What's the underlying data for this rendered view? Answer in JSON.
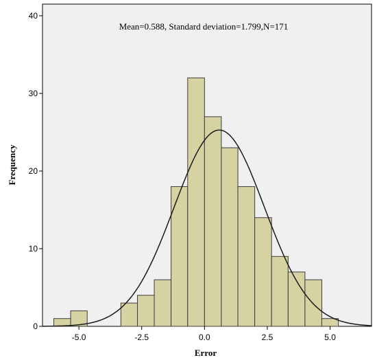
{
  "chart_data": {
    "type": "bar",
    "subtype": "histogram",
    "annotation": "Mean=0.588, Standard deviation=1.799,N=171",
    "xlabel": "Error",
    "ylabel": "Frequency",
    "xlim": [
      -6.45,
      6.65
    ],
    "ylim": [
      0,
      41.5
    ],
    "x_ticks": [
      {
        "value": -5.0,
        "label": "-5.0"
      },
      {
        "value": -2.5,
        "label": "-2.5"
      },
      {
        "value": 0.0,
        "label": "0.0"
      },
      {
        "value": 2.5,
        "label": "2.5"
      },
      {
        "value": 5.0,
        "label": "5.0"
      }
    ],
    "y_ticks": [
      {
        "value": 0,
        "label": "0"
      },
      {
        "value": 10,
        "label": "10"
      },
      {
        "value": 20,
        "label": "20"
      },
      {
        "value": 30,
        "label": "30"
      },
      {
        "value": 40,
        "label": "40"
      }
    ],
    "bins": [
      {
        "start": -6.0,
        "end": -5.33,
        "count": 1
      },
      {
        "start": -5.33,
        "end": -4.67,
        "count": 2
      },
      {
        "start": -4.67,
        "end": -4.0,
        "count": 0
      },
      {
        "start": -4.0,
        "end": -3.33,
        "count": 0
      },
      {
        "start": -3.33,
        "end": -2.67,
        "count": 3
      },
      {
        "start": -2.67,
        "end": -2.0,
        "count": 4
      },
      {
        "start": -2.0,
        "end": -1.33,
        "count": 6
      },
      {
        "start": -1.33,
        "end": -0.67,
        "count": 18
      },
      {
        "start": -0.67,
        "end": 0.0,
        "count": 32
      },
      {
        "start": 0.0,
        "end": 0.67,
        "count": 27
      },
      {
        "start": 0.67,
        "end": 1.33,
        "count": 23
      },
      {
        "start": 1.33,
        "end": 2.0,
        "count": 18
      },
      {
        "start": 2.0,
        "end": 2.67,
        "count": 14
      },
      {
        "start": 2.67,
        "end": 3.33,
        "count": 9
      },
      {
        "start": 3.33,
        "end": 4.0,
        "count": 7
      },
      {
        "start": 4.0,
        "end": 4.67,
        "count": 6
      },
      {
        "start": 4.67,
        "end": 5.33,
        "count": 1
      }
    ],
    "normal_curve": {
      "mean": 0.588,
      "sd": 1.799,
      "n": 171,
      "bin_width": 0.6667
    },
    "grid": false,
    "legend": "none",
    "colors": {
      "plot_background": "#f0f0f0",
      "bar_fill": "#d6d2a2",
      "bar_stroke": "#3c3c3c",
      "curve": "#1a1a1a",
      "axis": "#000000"
    }
  }
}
